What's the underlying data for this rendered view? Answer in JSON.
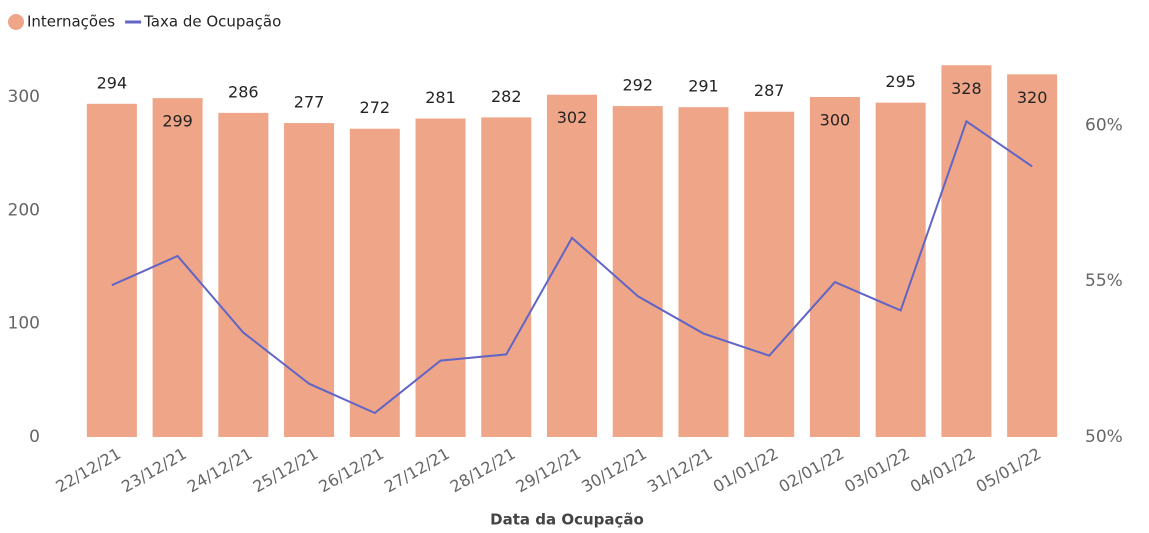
{
  "chart_data": {
    "type": "bar-line",
    "x_label": "Data da Ocupação",
    "categories": [
      "22/12/21",
      "23/12/21",
      "24/12/21",
      "25/12/21",
      "26/12/21",
      "27/12/21",
      "28/12/21",
      "29/12/21",
      "30/12/21",
      "31/12/21",
      "01/01/22",
      "02/01/22",
      "03/01/22",
      "04/01/22",
      "05/01/22"
    ],
    "series": [
      {
        "name": "Internações",
        "type": "bar",
        "color": "#eea588",
        "values": [
          294,
          299,
          286,
          277,
          272,
          281,
          282,
          302,
          292,
          291,
          287,
          300,
          295,
          328,
          320
        ]
      },
      {
        "name": "Taxa de Ocupação",
        "type": "line",
        "axis": "y2",
        "color": "#6165c6",
        "values": [
          54.87,
          55.81,
          53.35,
          51.71,
          50.77,
          52.45,
          52.65,
          56.39,
          54.52,
          53.32,
          52.61,
          54.97,
          54.06,
          60.13,
          58.68
        ]
      }
    ],
    "ylim": [
      0,
      330
    ],
    "yticks": [
      0,
      100,
      200,
      300
    ],
    "y2lim": [
      50,
      62
    ],
    "y2ticks": [
      {
        "value": 50,
        "label": "50%"
      },
      {
        "value": 55,
        "label": "55%"
      },
      {
        "value": 60,
        "label": "60%"
      }
    ],
    "legend": "top-left"
  }
}
